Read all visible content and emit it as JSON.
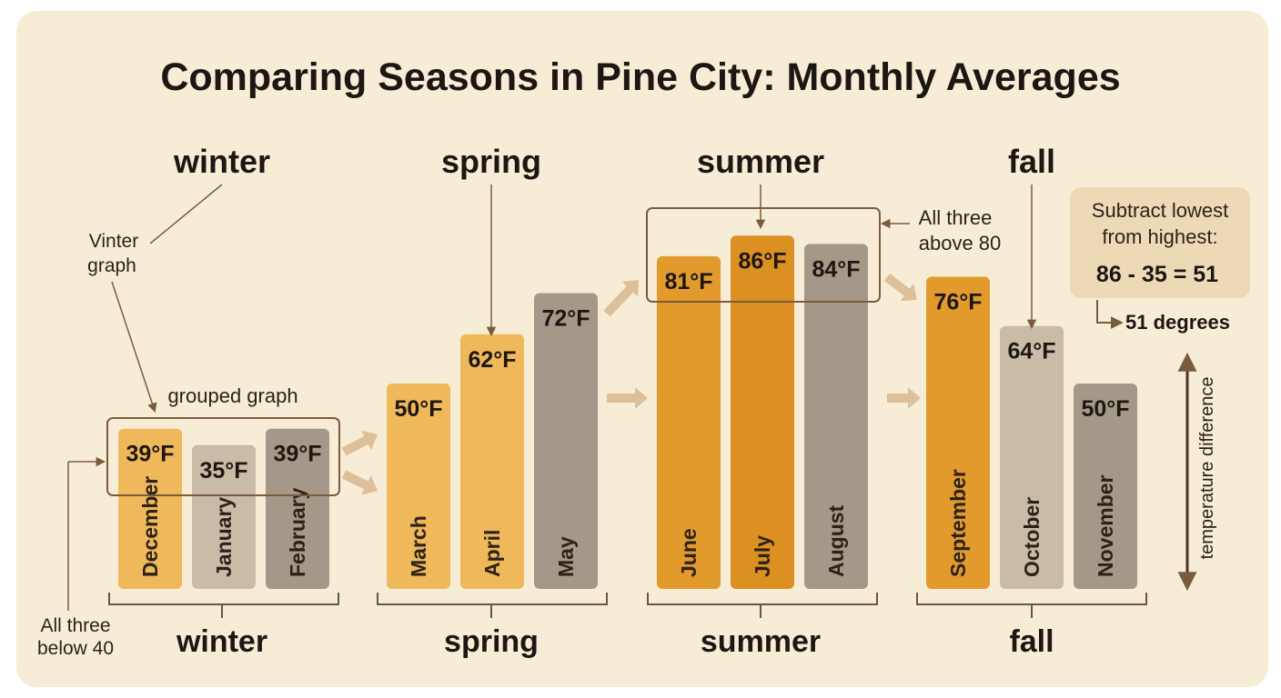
{
  "chart_data": {
    "type": "bar",
    "title": "Comparing Seasons in Pine City: Monthly Averages",
    "unit": "°F",
    "groups": [
      {
        "season": "winter",
        "months": [
          "December",
          "January",
          "February"
        ],
        "values": [
          39,
          35,
          39
        ],
        "labels": [
          "39°F",
          "35°F",
          "39°F"
        ]
      },
      {
        "season": "spring",
        "months": [
          "March",
          "April",
          "May"
        ],
        "values": [
          50,
          62,
          72
        ],
        "labels": [
          "50°F",
          "62°F",
          "72°F"
        ]
      },
      {
        "season": "summer",
        "months": [
          "June",
          "July",
          "August"
        ],
        "values": [
          81,
          86,
          84
        ],
        "labels": [
          "81°F",
          "86°F",
          "84°F"
        ]
      },
      {
        "season": "fall",
        "months": [
          "September",
          "October",
          "November"
        ],
        "values": [
          76,
          64,
          50
        ],
        "labels": [
          "76°F",
          "64°F",
          "50°F"
        ]
      }
    ],
    "colors": {
      "light_orange": "#efb85a",
      "orange": "#e39a2d",
      "dark_orange": "#dd9022",
      "tan": "#c9bba6",
      "gray": "#a49888",
      "annotation": "#7a5c3c"
    }
  },
  "annotations": {
    "winter_graph_note": [
      "Vinter",
      "graph"
    ],
    "grouped_graph_note": "grouped graph",
    "below_40_note": [
      "All three",
      "below 40"
    ],
    "above_80_note": [
      "All three",
      "above 80"
    ],
    "subtract_box": [
      "Subtract lowest",
      "from highest:"
    ],
    "equation": "86 - 35 = 51",
    "result": "51 degrees",
    "axis_note": "temperature difference"
  }
}
